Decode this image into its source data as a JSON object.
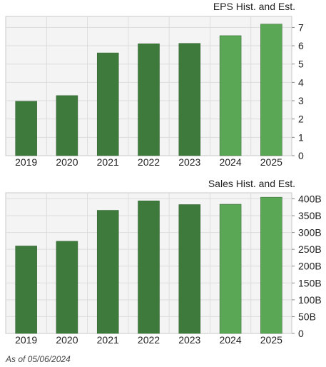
{
  "chart_data": [
    {
      "type": "bar",
      "title": "EPS Hist. and Est.",
      "categories": [
        "2019",
        "2020",
        "2021",
        "2022",
        "2023",
        "2024",
        "2025"
      ],
      "values": [
        2.97,
        3.28,
        5.61,
        6.11,
        6.13,
        6.55,
        7.18
      ],
      "estimate_flags": [
        false,
        false,
        false,
        false,
        false,
        true,
        true
      ],
      "yticks": [
        "0",
        "1",
        "2",
        "3",
        "4",
        "5",
        "6",
        "7"
      ],
      "ytick_values": [
        0,
        1,
        2,
        3,
        4,
        5,
        6,
        7
      ],
      "ylim": [
        0,
        7.6
      ],
      "grid": true,
      "colors": {
        "historical": "#3d7a3b",
        "estimate": "#5aa755"
      }
    },
    {
      "type": "bar",
      "title": "Sales Hist. and Est.",
      "categories": [
        "2019",
        "2020",
        "2021",
        "2022",
        "2023",
        "2024",
        "2025"
      ],
      "values": [
        260,
        274,
        366,
        394,
        383,
        384,
        405
      ],
      "estimate_flags": [
        false,
        false,
        false,
        false,
        false,
        true,
        true
      ],
      "yticks": [
        "0",
        "50B",
        "100B",
        "150B",
        "200B",
        "250B",
        "300B",
        "350B",
        "400B"
      ],
      "ytick_values": [
        0,
        50,
        100,
        150,
        200,
        250,
        300,
        350,
        400
      ],
      "ylim": [
        0,
        418
      ],
      "grid": true,
      "colors": {
        "historical": "#3d7a3b",
        "estimate": "#5aa755"
      }
    }
  ],
  "footer": {
    "as_of": "As of 05/06/2024"
  }
}
